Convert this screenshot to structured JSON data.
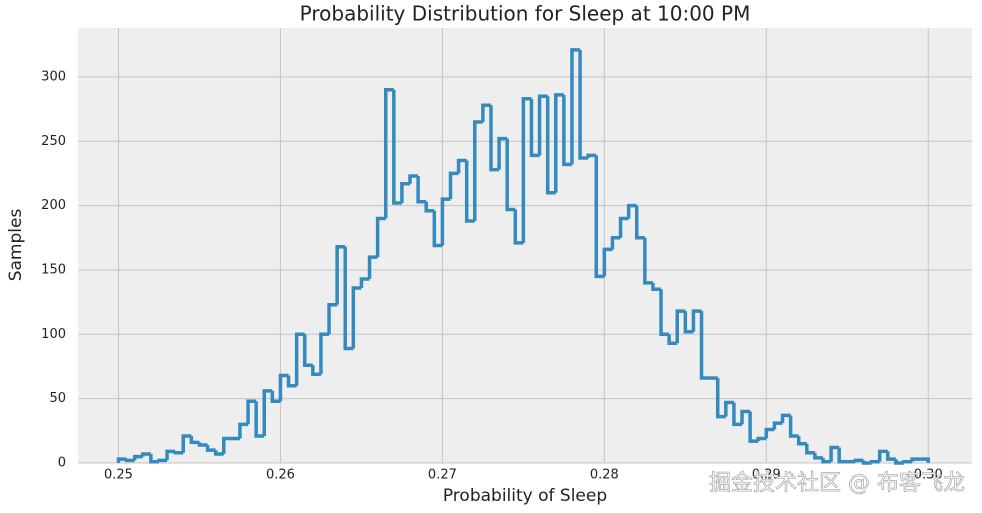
{
  "chart_data": {
    "type": "histogram",
    "title": "Probability Distribution for Sleep at 10:00 PM",
    "xlabel": "Probability of Sleep",
    "ylabel": "Samples",
    "watermark": "掘金技术社区 @ 布客飞龙",
    "color": "#348abd",
    "bins": [
      0.25,
      0.2505,
      0.251,
      0.2515,
      0.252,
      0.2525,
      0.253,
      0.2535,
      0.254,
      0.2545,
      0.255,
      0.2555,
      0.256,
      0.2565,
      0.257,
      0.2575,
      0.258,
      0.2585,
      0.259,
      0.2595,
      0.26,
      0.2605,
      0.261,
      0.2615,
      0.262,
      0.2625,
      0.263,
      0.2635,
      0.264,
      0.2645,
      0.265,
      0.2655,
      0.266,
      0.2665,
      0.267,
      0.2675,
      0.268,
      0.2685,
      0.269,
      0.2695,
      0.27,
      0.2705,
      0.271,
      0.2715,
      0.272,
      0.2725,
      0.273,
      0.2735,
      0.274,
      0.2745,
      0.275,
      0.2755,
      0.276,
      0.2765,
      0.277,
      0.2775,
      0.278,
      0.2785,
      0.279,
      0.2795,
      0.28,
      0.2805,
      0.281,
      0.2815,
      0.282,
      0.2825,
      0.283,
      0.2835,
      0.284,
      0.2845,
      0.285,
      0.2855,
      0.286,
      0.2865,
      0.287,
      0.2875,
      0.288,
      0.2885,
      0.289,
      0.2895,
      0.29,
      0.2905,
      0.291,
      0.2915,
      0.292,
      0.2925,
      0.293,
      0.2935,
      0.294,
      0.2945,
      0.295,
      0.2955,
      0.296,
      0.2965,
      0.297,
      0.2975,
      0.298,
      0.2985,
      0.299,
      0.2995,
      0.3
    ],
    "values": [
      3,
      2,
      5,
      7,
      1,
      2,
      9,
      8,
      21,
      16,
      14,
      10,
      7,
      19,
      19,
      30,
      48,
      21,
      56,
      48,
      68,
      60,
      100,
      76,
      69,
      100,
      123,
      168,
      89,
      136,
      143,
      160,
      190,
      290,
      202,
      217,
      223,
      203,
      196,
      169,
      205,
      225,
      235,
      188,
      265,
      278,
      228,
      252,
      197,
      171,
      283,
      239,
      285,
      210,
      286,
      232,
      321,
      237,
      239,
      145,
      166,
      175,
      190,
      200,
      175,
      140,
      135,
      100,
      93,
      118,
      102,
      118,
      66,
      66,
      36,
      47,
      30,
      40,
      17,
      19,
      26,
      31,
      37,
      21,
      15,
      8,
      4,
      1,
      12,
      1,
      1,
      2,
      0,
      1,
      9,
      3,
      0,
      1,
      3,
      3
    ],
    "xlim": [
      0.2475,
      0.3027
    ],
    "ylim": [
      0,
      338
    ],
    "xticks": [
      0.25,
      0.26,
      0.27,
      0.28,
      0.29,
      {
        "value": 0.3,
        "label": "0.30"
      }
    ],
    "yticks": [
      0,
      50,
      100,
      150,
      200,
      250,
      300
    ],
    "grid": true
  }
}
